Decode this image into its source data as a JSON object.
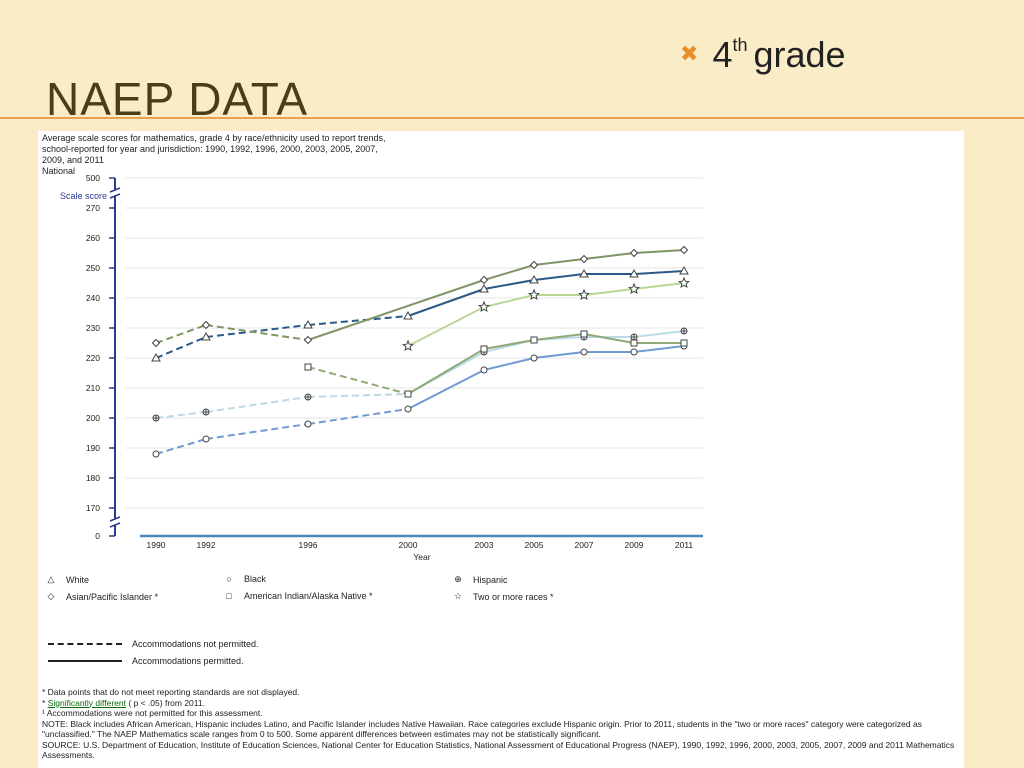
{
  "slide": {
    "bullet_mark": "✖",
    "bullet_main": "4",
    "bullet_sup": "th",
    "bullet_rest": "grade",
    "title": "NAEP DATA"
  },
  "figure": {
    "header_lines": [
      "Average scale scores for mathematics, grade 4 by race/ethnicity used to report trends,",
      "school-reported for year and jurisdiction: 1990, 1992, 1996, 2000, 2003, 2005, 2007,",
      "2009, and 2011",
      "National"
    ],
    "legend": [
      {
        "symbol": "△",
        "label": "White"
      },
      {
        "symbol": "○",
        "label": "Black"
      },
      {
        "symbol": "⊕",
        "label": "Hispanic"
      },
      {
        "symbol": "◇",
        "label": "Asian/Pacific Islander *"
      },
      {
        "symbol": "□",
        "label": "American Indian/Alaska Native *"
      },
      {
        "symbol": "☆",
        "label": "Two or more races *"
      }
    ],
    "accommodations": {
      "not_permitted": "Accommodations not permitted.",
      "permitted": "Accommodations permitted."
    },
    "notes": {
      "note1": "* Data points that do not meet reporting standards are not displayed.",
      "note2_prefix": "*",
      "note2_link": "Significantly different",
      "note2_suffix": "( p < .05) from 2011.",
      "note3": "¹ Accommodations were not permitted for this assessment.",
      "note4": "NOTE: Black includes African American, Hispanic includes Latino, and Pacific Islander includes Native Hawaiian.  Race categories exclude Hispanic origin. Prior to 2011, students in the \"two or more races\" category were categorized as \"unclassified.\" The NAEP Mathematics scale ranges from 0 to 500. Some apparent differences between estimates may not be statistically significant.",
      "note5": "SOURCE: U.S. Department of Education, Institute of Education Sciences, National Center for Education Statistics, National Assessment of Educational Progress (NAEP), 1990, 1992, 1996, 2000, 2003, 2005, 2007, 2009 and 2011 Mathematics Assessments."
    }
  },
  "chart_data": {
    "type": "line",
    "title": "",
    "xlabel": "Year",
    "ylabel": "Scale score",
    "x": [
      1990,
      1992,
      1996,
      2000,
      2003,
      2005,
      2007,
      2009,
      2011
    ],
    "x_tick_labels": [
      "1990",
      "1992",
      "1996",
      "2000",
      "2003",
      "2005",
      "2007",
      "2009",
      "2011"
    ],
    "y_tick_labels": [
      "500",
      "270",
      "260",
      "250",
      "240",
      "230",
      "220",
      "210",
      "200",
      "190",
      "180",
      "170",
      "0"
    ],
    "ylim": [
      170,
      270
    ],
    "axis_breaks": "broken axis between 0 and 170 and between 270 and 500",
    "grid": true,
    "legend_position": "bottom",
    "dashed_until": 2000,
    "series": [
      {
        "name": "White",
        "symbol": "triangle",
        "color": "#2b5a86",
        "points": [
          [
            1990,
            220
          ],
          [
            1992,
            227
          ],
          [
            1996,
            231
          ],
          [
            2000,
            234
          ],
          [
            2003,
            243
          ],
          [
            2005,
            246
          ],
          [
            2007,
            248
          ],
          [
            2009,
            248
          ],
          [
            2011,
            249
          ]
        ]
      },
      {
        "name": "Black",
        "symbol": "circle",
        "color": "#6f9bd0",
        "points": [
          [
            1990,
            188
          ],
          [
            1992,
            193
          ],
          [
            1996,
            198
          ],
          [
            2000,
            203
          ],
          [
            2003,
            216
          ],
          [
            2005,
            220
          ],
          [
            2007,
            222
          ],
          [
            2009,
            222
          ],
          [
            2011,
            224
          ]
        ]
      },
      {
        "name": "Hispanic",
        "symbol": "plus",
        "color": "#bcd9e6",
        "points": [
          [
            1990,
            200
          ],
          [
            1992,
            202
          ],
          [
            1996,
            207
          ],
          [
            2000,
            208
          ],
          [
            2003,
            222
          ],
          [
            2005,
            226
          ],
          [
            2007,
            227
          ],
          [
            2009,
            227
          ],
          [
            2011,
            229
          ]
        ]
      },
      {
        "name": "Asian/Pacific Islander *",
        "symbol": "diamond",
        "color": "#7f9664",
        "points": [
          [
            1990,
            225
          ],
          [
            1992,
            231
          ],
          [
            1996,
            226
          ],
          [
            2003,
            246
          ],
          [
            2005,
            251
          ],
          [
            2007,
            253
          ],
          [
            2009,
            255
          ],
          [
            2011,
            256
          ]
        ]
      },
      {
        "name": "American Indian/Alaska Native *",
        "symbol": "square",
        "color": "#8faa77",
        "points": [
          [
            1996,
            217
          ],
          [
            2000,
            208
          ],
          [
            2003,
            223
          ],
          [
            2005,
            226
          ],
          [
            2007,
            228
          ],
          [
            2009,
            225
          ],
          [
            2011,
            225
          ]
        ]
      },
      {
        "name": "Two or more races *",
        "symbol": "star",
        "color": "#b7d895",
        "points": [
          [
            2000,
            224
          ],
          [
            2003,
            237
          ],
          [
            2005,
            241
          ],
          [
            2007,
            241
          ],
          [
            2009,
            243
          ],
          [
            2011,
            245
          ]
        ]
      }
    ],
    "colors": {
      "axis": "#2a3b8f",
      "baseline": "#4f86b6",
      "grid": "#e6e6e6"
    }
  }
}
